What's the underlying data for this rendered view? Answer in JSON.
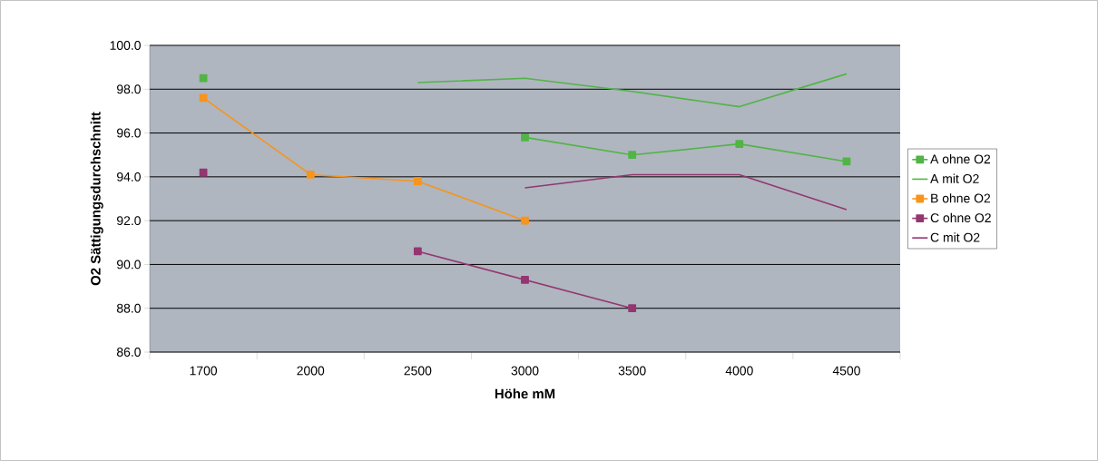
{
  "chart_data": {
    "type": "line",
    "xlabel": "Höhe mM",
    "ylabel": "O2 Sättigungsdurchschnitt",
    "categories": [
      "1700",
      "2000",
      "2500",
      "3000",
      "3500",
      "4000",
      "4500"
    ],
    "series": [
      {
        "name": "A ohne O2",
        "color": "#52b446",
        "marker": "square",
        "values": [
          98.5,
          null,
          null,
          95.8,
          95.0,
          95.5,
          94.7
        ]
      },
      {
        "name": "A mit O2",
        "color": "#52b446",
        "marker": "none",
        "values": [
          null,
          null,
          98.3,
          98.5,
          97.9,
          97.2,
          98.7
        ]
      },
      {
        "name": "B ohne O2",
        "color": "#f7941d",
        "marker": "square",
        "values": [
          97.6,
          94.1,
          93.8,
          92.0,
          null,
          null,
          null
        ]
      },
      {
        "name": "C ohne O2",
        "color": "#943670",
        "marker": "square",
        "values": [
          94.2,
          null,
          90.6,
          89.3,
          88.0,
          null,
          null
        ]
      },
      {
        "name": "C mit O2",
        "color": "#943670",
        "marker": "none",
        "values": [
          null,
          null,
          null,
          93.5,
          94.1,
          94.1,
          92.5
        ]
      }
    ],
    "ylim": [
      86,
      100
    ],
    "yticks": [
      {
        "value": 86,
        "label": "86.0"
      },
      {
        "value": 88,
        "label": "88.0"
      },
      {
        "value": 90,
        "label": "90.0"
      },
      {
        "value": 92,
        "label": "92.0"
      },
      {
        "value": 94,
        "label": "94.0"
      },
      {
        "value": 96,
        "label": "96.0"
      },
      {
        "value": 98,
        "label": "98.0"
      },
      {
        "value": 100,
        "label": "100.0"
      }
    ],
    "grid": "y",
    "legend": "right",
    "line_style": "solid"
  }
}
